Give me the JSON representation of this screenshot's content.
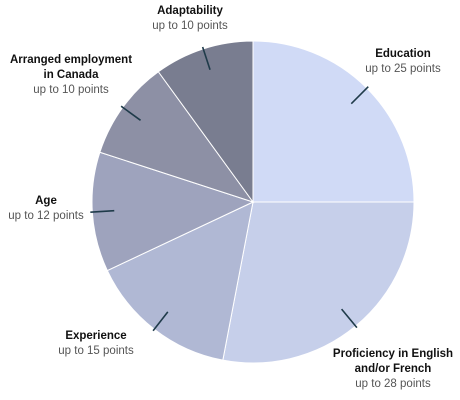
{
  "chart_data": {
    "type": "pie",
    "total": 100,
    "slices": [
      {
        "name": "Education",
        "line2": "",
        "points_label": "up to 25 points",
        "value": 25,
        "color": "#d0daf6"
      },
      {
        "name": "Proficiency in English",
        "line2": "and/or French",
        "points_label": "up to 28 points",
        "value": 28,
        "color": "#c6cfea"
      },
      {
        "name": "Experience",
        "line2": "",
        "points_label": "up to 15 points",
        "value": 15,
        "color": "#b0b8d4"
      },
      {
        "name": "Age",
        "line2": "",
        "points_label": "up to 12 points",
        "value": 12,
        "color": "#9ea3bd"
      },
      {
        "name": "Arranged employment",
        "line2": "in Canada",
        "points_label": "up to 10 points",
        "value": 10,
        "color": "#8d90a5"
      },
      {
        "name": "Adaptability",
        "line2": "",
        "points_label": "up to 10 points",
        "value": 10,
        "color": "#797d90"
      }
    ],
    "leader_color": "#1f3b4a"
  }
}
